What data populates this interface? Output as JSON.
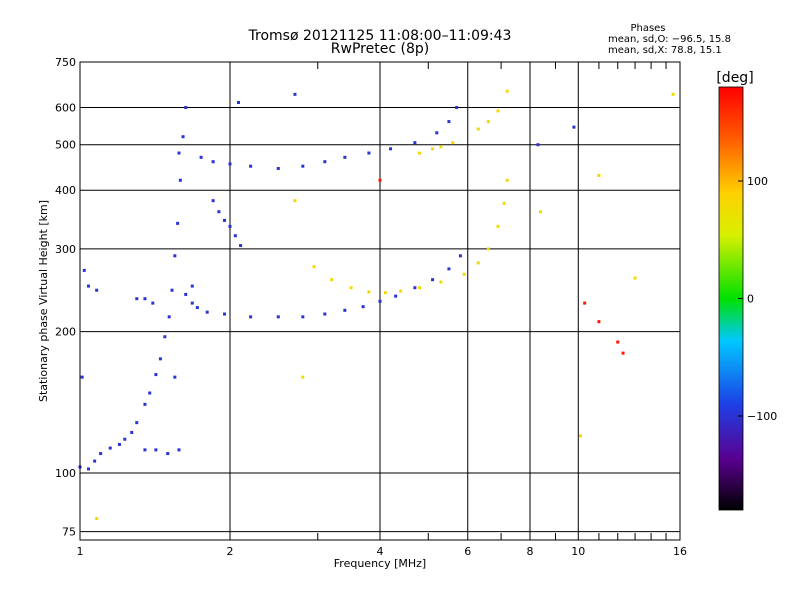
{
  "chart_data": {
    "type": "scatter",
    "title": "Tromsø 20121125 11:08:00–11:09:43",
    "subtitle": "RwPretec (8p)",
    "xlabel": "Frequency [MHz]",
    "ylabel": "Stationary phase Virtual Height [km]",
    "x_scale": "log",
    "y_scale": "log",
    "xlim": [
      1,
      16
    ],
    "ylim": [
      72,
      750
    ],
    "x_ticks": [
      1,
      2,
      4,
      6,
      8,
      10,
      16
    ],
    "x_tick_labels": [
      "1",
      "2",
      "4",
      "6",
      "8",
      "10",
      "16"
    ],
    "x_minor_ticks": [
      3,
      5,
      7,
      9,
      11,
      12,
      13,
      14,
      15
    ],
    "y_ticks": [
      75,
      100,
      200,
      300,
      400,
      500,
      600,
      750
    ],
    "y_tick_labels": [
      "75",
      "100",
      "200",
      "300",
      "400",
      "500",
      "600",
      "750"
    ],
    "grid": true,
    "stats": {
      "heading": "Phases",
      "line_o": "mean, sd,O: −96.5, 15.8",
      "line_x": "mean, sd,X:  78.8, 15.1"
    },
    "colorbar": {
      "unit": "[deg]",
      "vmin": -180,
      "vmax": 180,
      "ticks": [
        100,
        0,
        -100
      ],
      "tick_labels": [
        "100",
        "0",
        "−100"
      ]
    },
    "series": [
      {
        "color_phase": -100,
        "points": [
          [
            1.0,
            103
          ],
          [
            1.04,
            102
          ],
          [
            1.07,
            106
          ],
          [
            1.1,
            110
          ],
          [
            1.15,
            113
          ],
          [
            1.2,
            115
          ],
          [
            1.23,
            118
          ],
          [
            1.27,
            122
          ],
          [
            1.3,
            128
          ],
          [
            1.35,
            140
          ],
          [
            1.38,
            148
          ],
          [
            1.42,
            162
          ],
          [
            1.45,
            175
          ],
          [
            1.48,
            195
          ],
          [
            1.51,
            215
          ],
          [
            1.53,
            245
          ],
          [
            1.55,
            290
          ],
          [
            1.57,
            340
          ],
          [
            1.59,
            420
          ],
          [
            1.61,
            520
          ],
          [
            1.63,
            600
          ],
          [
            1.01,
            160
          ],
          [
            1.04,
            250
          ],
          [
            1.08,
            245
          ],
          [
            1.02,
            270
          ],
          [
            1.3,
            235
          ],
          [
            1.35,
            235
          ],
          [
            1.4,
            230
          ],
          [
            1.35,
            112
          ],
          [
            1.42,
            112
          ],
          [
            1.5,
            110
          ],
          [
            1.58,
            112
          ],
          [
            1.75,
            470
          ],
          [
            1.85,
            460
          ],
          [
            2.0,
            455
          ],
          [
            2.2,
            450
          ],
          [
            2.5,
            445
          ],
          [
            2.8,
            450
          ],
          [
            3.1,
            460
          ],
          [
            3.4,
            470
          ],
          [
            3.8,
            480
          ],
          [
            4.2,
            490
          ],
          [
            4.7,
            505
          ],
          [
            5.2,
            530
          ],
          [
            5.5,
            560
          ],
          [
            5.7,
            600
          ],
          [
            1.68,
            230
          ],
          [
            1.72,
            225
          ],
          [
            1.8,
            220
          ],
          [
            1.95,
            218
          ],
          [
            2.2,
            215
          ],
          [
            2.5,
            215
          ],
          [
            2.8,
            215
          ],
          [
            3.1,
            218
          ],
          [
            3.4,
            222
          ],
          [
            3.7,
            226
          ],
          [
            4.0,
            232
          ],
          [
            4.3,
            238
          ],
          [
            4.7,
            248
          ],
          [
            5.1,
            258
          ],
          [
            5.5,
            272
          ],
          [
            5.8,
            290
          ],
          [
            1.85,
            380
          ],
          [
            1.9,
            360
          ],
          [
            1.95,
            345
          ],
          [
            2.0,
            335
          ],
          [
            2.05,
            320
          ],
          [
            2.1,
            305
          ],
          [
            1.63,
            240
          ],
          [
            1.68,
            250
          ],
          [
            1.58,
            480
          ],
          [
            1.55,
            160
          ],
          [
            2.7,
            640
          ],
          [
            2.08,
            615
          ],
          [
            8.3,
            500
          ],
          [
            9.8,
            545
          ]
        ]
      },
      {
        "color_phase": 80,
        "points": [
          [
            2.95,
            275
          ],
          [
            3.2,
            258
          ],
          [
            3.5,
            248
          ],
          [
            3.8,
            243
          ],
          [
            4.1,
            242
          ],
          [
            4.4,
            244
          ],
          [
            4.8,
            248
          ],
          [
            5.3,
            255
          ],
          [
            5.9,
            265
          ],
          [
            6.3,
            280
          ],
          [
            6.6,
            300
          ],
          [
            6.9,
            335
          ],
          [
            7.1,
            375
          ],
          [
            7.2,
            420
          ],
          [
            4.8,
            480
          ],
          [
            5.1,
            490
          ],
          [
            5.3,
            495
          ],
          [
            5.6,
            505
          ],
          [
            6.3,
            540
          ],
          [
            6.6,
            560
          ],
          [
            6.9,
            590
          ],
          [
            7.2,
            650
          ],
          [
            1.08,
            80
          ],
          [
            2.7,
            380
          ],
          [
            2.8,
            160
          ],
          [
            8.4,
            360
          ],
          [
            10.1,
            120
          ],
          [
            11.0,
            430
          ],
          [
            13.0,
            260
          ],
          [
            15.5,
            640
          ]
        ]
      },
      {
        "color_phase": 170,
        "points": [
          [
            4.0,
            420
          ],
          [
            10.3,
            230
          ],
          [
            11.0,
            210
          ],
          [
            12.0,
            190
          ],
          [
            12.3,
            180
          ]
        ]
      }
    ]
  }
}
